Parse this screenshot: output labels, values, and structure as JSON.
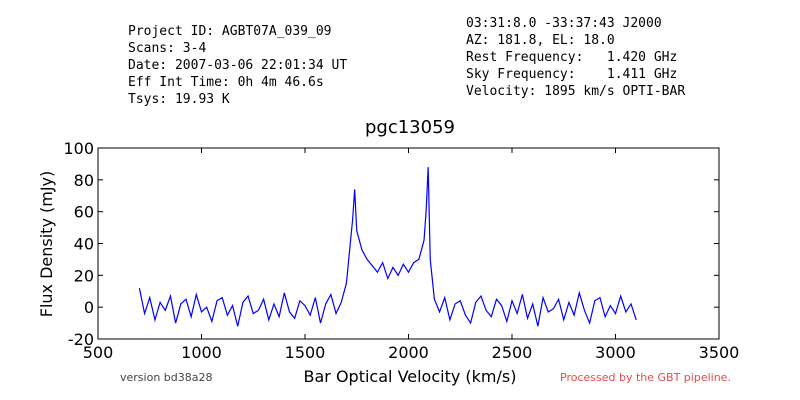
{
  "chart_data": {
    "type": "line",
    "title": "pgc13059",
    "x_label": "Bar Optical Velocity (km/s)",
    "y_label": "Flux Density (mJy)",
    "header_left": [
      "Project ID: AGBT07A_039_09",
      "Scans: 3-4",
      "Date: 2007-03-06 22:01:34 UT",
      "Eff Int Time: 0h 4m 46.6s",
      "Tsys: 19.93 K"
    ],
    "header_right": [
      "03:31:8.0 -33:37:43 J2000",
      "AZ: 181.8, EL: 18.0",
      "Rest Frequency:   1.420 GHz",
      "Sky Frequency:    1.411 GHz",
      "Velocity: 1895 km/s OPTI-BAR"
    ],
    "footer_left": "version bd38a28",
    "footer_right": "Processed by the GBT pipeline.",
    "xlim": [
      500,
      3500
    ],
    "xticks": [
      500,
      1000,
      1500,
      2000,
      2500,
      3000,
      3500
    ],
    "ylim": [
      -20,
      100
    ],
    "yticks": [
      -20,
      0,
      20,
      40,
      60,
      80,
      100
    ],
    "series": [
      {
        "color": "#0000ff",
        "x": [
          700,
          725,
          750,
          775,
          800,
          825,
          850,
          875,
          900,
          925,
          950,
          975,
          1000,
          1025,
          1050,
          1075,
          1100,
          1125,
          1150,
          1175,
          1200,
          1225,
          1250,
          1275,
          1300,
          1325,
          1350,
          1375,
          1400,
          1425,
          1450,
          1475,
          1500,
          1525,
          1550,
          1575,
          1600,
          1625,
          1650,
          1675,
          1700,
          1715,
          1730,
          1740,
          1750,
          1775,
          1800,
          1825,
          1850,
          1875,
          1900,
          1925,
          1950,
          1975,
          2000,
          2025,
          2050,
          2075,
          2085,
          2095,
          2105,
          2125,
          2150,
          2175,
          2200,
          2225,
          2250,
          2275,
          2300,
          2325,
          2350,
          2375,
          2400,
          2425,
          2450,
          2475,
          2500,
          2525,
          2550,
          2575,
          2600,
          2625,
          2650,
          2675,
          2700,
          2725,
          2750,
          2775,
          2800,
          2825,
          2850,
          2875,
          2900,
          2925,
          2950,
          2975,
          3000,
          3025,
          3050,
          3075,
          3100
        ],
        "values": [
          12,
          -4,
          6,
          -8,
          3,
          -2,
          7,
          -10,
          2,
          5,
          -6,
          8,
          -3,
          0,
          -9,
          4,
          6,
          -5,
          1,
          -12,
          3,
          7,
          -4,
          -2,
          5,
          -8,
          2,
          -6,
          9,
          -3,
          -7,
          4,
          1,
          -5,
          6,
          -10,
          2,
          8,
          -4,
          3,
          15,
          35,
          55,
          74,
          48,
          36,
          30,
          26,
          22,
          28,
          18,
          25,
          20,
          27,
          22,
          28,
          30,
          42,
          60,
          88,
          30,
          5,
          -3,
          6,
          -8,
          2,
          4,
          -5,
          -10,
          3,
          7,
          -2,
          -6,
          5,
          1,
          -9,
          4,
          -4,
          8,
          -7,
          2,
          -12,
          6,
          -3,
          -1,
          5,
          -8,
          3,
          -5,
          9,
          -2,
          -10,
          4,
          6,
          -6,
          1,
          -4,
          7,
          -3,
          2,
          -8
        ]
      }
    ]
  }
}
